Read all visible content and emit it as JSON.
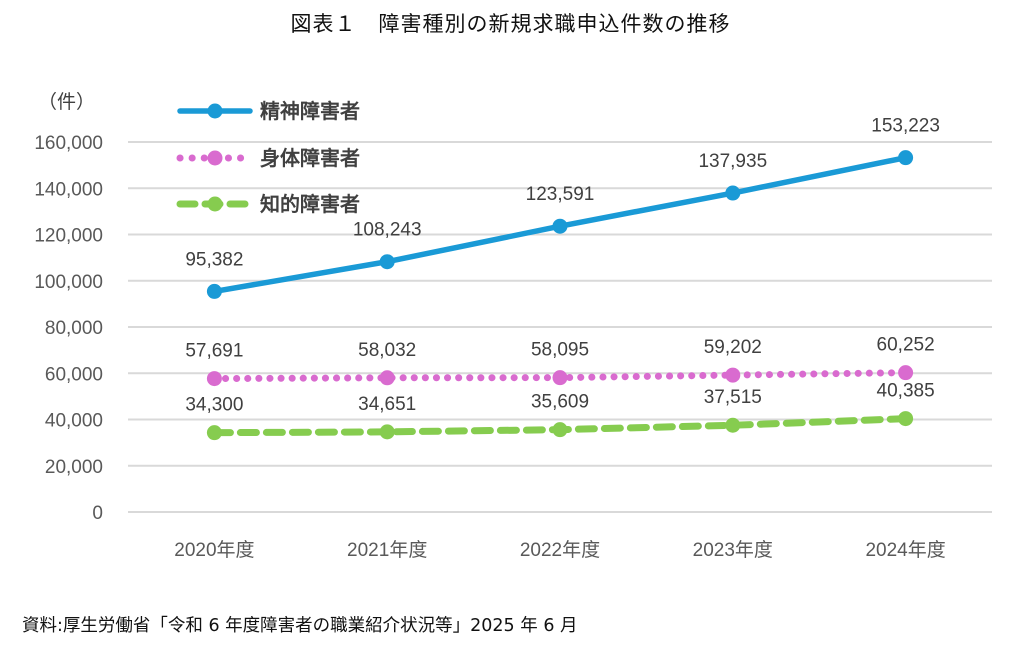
{
  "title": "図表１　障害種別の新規求職申込件数の推移",
  "source": "資料:厚生労働省「令和 6 年度障害者の職業紹介状況等」2025 年 6 月",
  "chart_data": {
    "type": "line",
    "title": "図表１　障害種別の新規求職申込件数の推移",
    "ylabel": "（件）",
    "xlabel": "",
    "categories": [
      "2020年度",
      "2021年度",
      "2022年度",
      "2023年度",
      "2024年度"
    ],
    "ylim": [
      0,
      160000
    ],
    "yticks": [
      0,
      20000,
      40000,
      60000,
      80000,
      100000,
      120000,
      140000,
      160000
    ],
    "ytick_labels": [
      "0",
      "20,000",
      "40,000",
      "60,000",
      "80,000",
      "100,000",
      "120,000",
      "140,000",
      "160,000"
    ],
    "grid": true,
    "legend_position": "top-left",
    "series": [
      {
        "name": "精神障害者",
        "color": "#1a9ad6",
        "style": "solid",
        "values": [
          95382,
          108243,
          123591,
          137935,
          153223
        ],
        "labels": [
          "95,382",
          "108,243",
          "123,591",
          "137,935",
          "153,223"
        ]
      },
      {
        "name": "身体障害者",
        "color": "#d96bcf",
        "style": "dotted",
        "values": [
          57691,
          58032,
          58095,
          59202,
          60252
        ],
        "labels": [
          "57,691",
          "58,032",
          "58,095",
          "59,202",
          "60,252"
        ]
      },
      {
        "name": "知的障害者",
        "color": "#86cc4f",
        "style": "dashed",
        "values": [
          34300,
          34651,
          35609,
          37515,
          40385
        ],
        "labels": [
          "34,300",
          "34,651",
          "35,609",
          "37,515",
          "40,385"
        ]
      }
    ]
  }
}
